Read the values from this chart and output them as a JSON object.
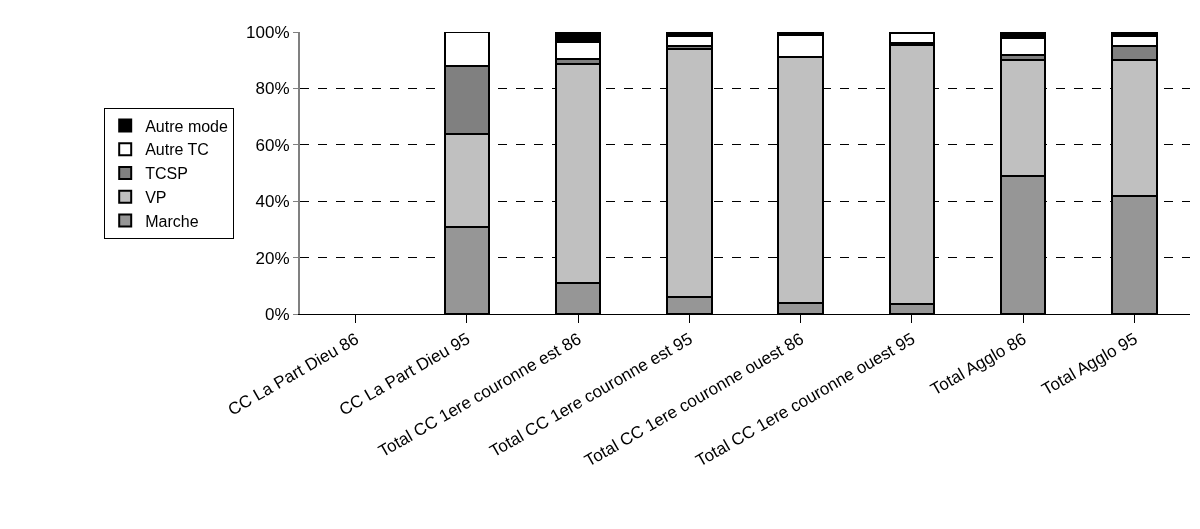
{
  "chart_data": {
    "type": "bar",
    "stacked": true,
    "categories": [
      "CC La Part Dieu 86",
      "CC La Part Dieu 95",
      "Total CC 1ere couronne est 86",
      "Total CC 1ere couronne est 95",
      "Total CC 1ere couronne ouest 86",
      "Total CC 1ere couronne ouest 95",
      "Total Agglo 86",
      "Total Agglo 95"
    ],
    "series": [
      {
        "name": "Marche",
        "color": "#969696",
        "values": [
          null,
          31,
          11,
          6,
          4,
          3.5,
          49,
          42
        ]
      },
      {
        "name": "VP",
        "color": "#c0c0c0",
        "values": [
          null,
          33,
          77.5,
          88,
          87,
          92,
          41,
          48
        ]
      },
      {
        "name": "TCSP",
        "color": "#808080",
        "values": [
          null,
          24,
          2,
          1,
          0,
          0.5,
          2,
          5
        ]
      },
      {
        "name": "Autre TC",
        "color": "#ffffff",
        "values": [
          null,
          12,
          6,
          3.5,
          8,
          3.5,
          6,
          3.5
        ]
      },
      {
        "name": "Autre mode",
        "color": "#000000",
        "values": [
          null,
          0,
          3.5,
          1.5,
          1,
          0.5,
          2,
          1.5
        ]
      }
    ],
    "ylim": [
      0,
      100
    ],
    "yticks": [
      {
        "value": 0,
        "label": "0%"
      },
      {
        "value": 20,
        "label": "20%"
      },
      {
        "value": 40,
        "label": "40%"
      },
      {
        "value": 60,
        "label": "60%"
      },
      {
        "value": 80,
        "label": "80%"
      },
      {
        "value": 100,
        "label": "100%"
      }
    ],
    "grid": "y",
    "legend": "left"
  }
}
